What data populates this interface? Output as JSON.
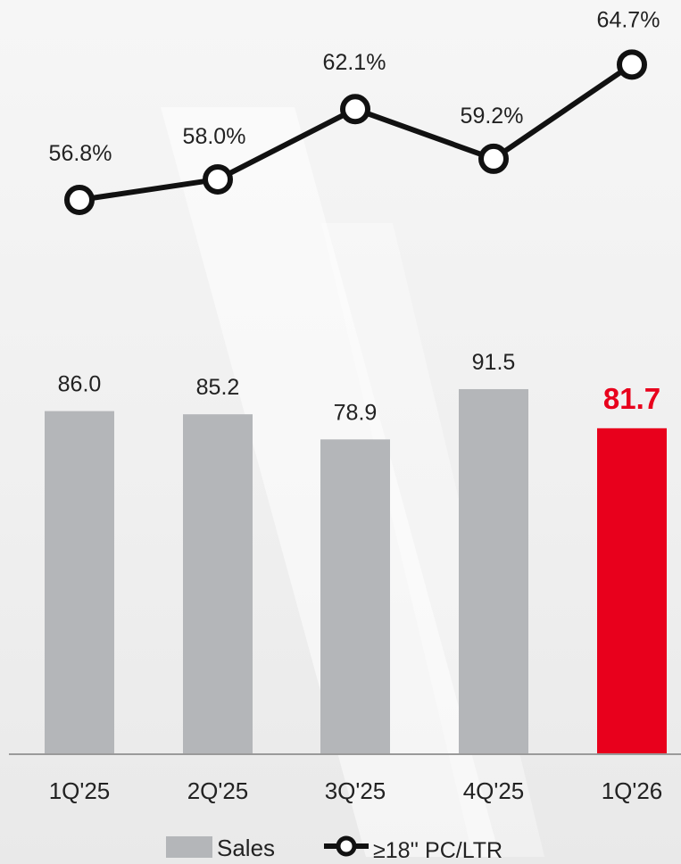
{
  "chart_data": {
    "type": "bar",
    "categories": [
      "1Q'25",
      "2Q'25",
      "3Q'25",
      "4Q'25",
      "1Q'26"
    ],
    "series": [
      {
        "name": "Sales",
        "type": "bar",
        "values": [
          86.0,
          85.2,
          78.9,
          91.5,
          81.7
        ],
        "labels": [
          "86.0",
          "85.2",
          "78.9",
          "91.5",
          "81.7"
        ]
      },
      {
        "name": "≥18'' PC/LTR",
        "type": "line",
        "values": [
          56.8,
          58.0,
          62.1,
          59.2,
          64.7
        ],
        "labels": [
          "56.8%",
          "58.0%",
          "62.1%",
          "59.2%",
          "64.7%"
        ]
      }
    ],
    "highlight_index": 4,
    "colors": {
      "bar": "#b4b6b9",
      "bar_highlight": "#e8001c",
      "label_highlight": "#e8001c",
      "line": "#111111",
      "marker_fill": "#ffffff",
      "text": "#222222",
      "axis": "#9a9a9a"
    },
    "legend": {
      "position": "bottom",
      "items": [
        {
          "label": "Sales",
          "marker": "gray-box"
        },
        {
          "label": "≥18'' PC/LTR",
          "marker": "line-circle"
        }
      ]
    },
    "grid": false
  }
}
